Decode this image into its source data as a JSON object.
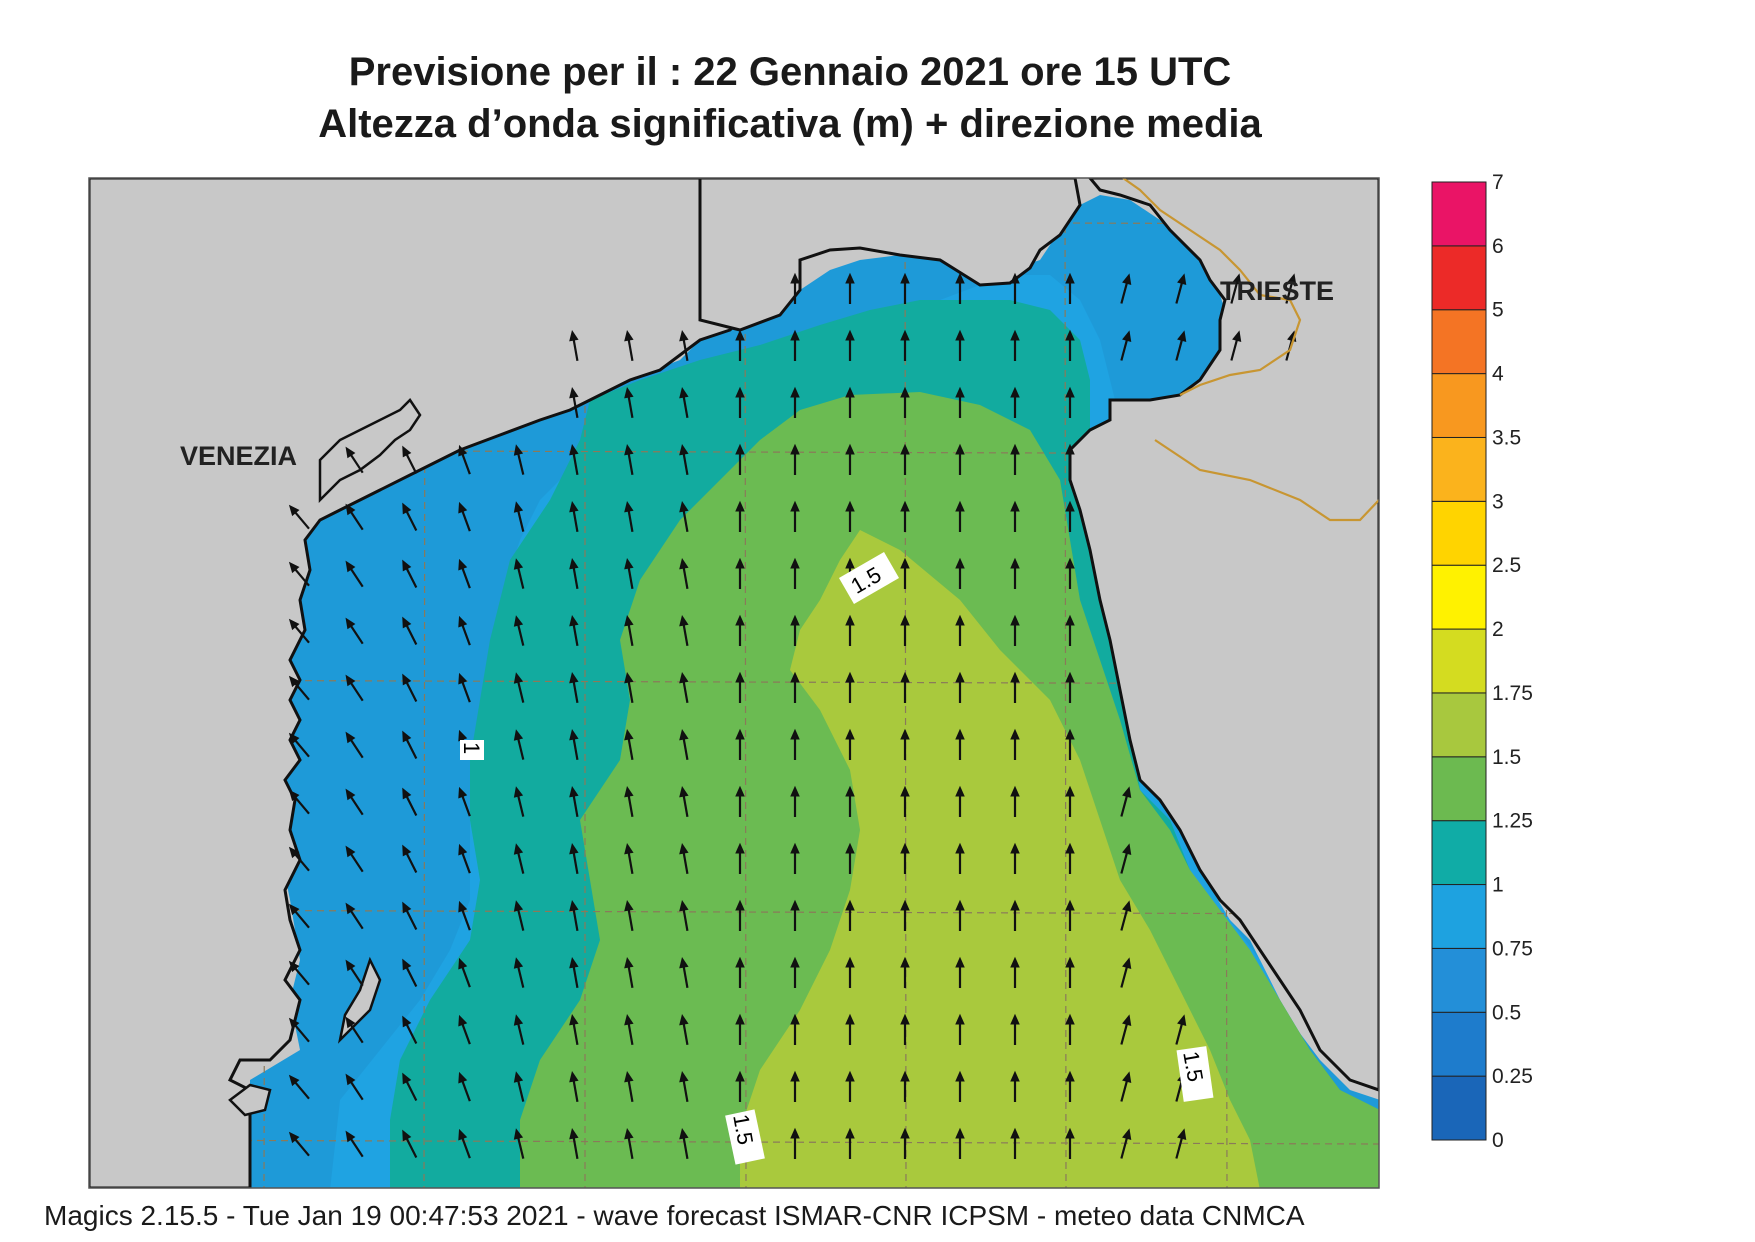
{
  "header": {
    "title": "Previsione per il  :  22  Gennaio  2021    ore 15 UTC",
    "subtitle": "Altezza d’onda significativa (m) + direzione media"
  },
  "map": {
    "cities": [
      {
        "name": "VENEZIA"
      },
      {
        "name": "TRIESTE"
      }
    ],
    "contour_labels": [
      "1.5",
      "1",
      "1.5",
      "1.5"
    ],
    "colors": {
      "land": "#c8c8c8",
      "coast": "#111111",
      "border": "#c89632",
      "grid": "#8a7a5a"
    }
  },
  "colorbar": {
    "levels": [
      "0",
      "0.25",
      "0.5",
      "0.75",
      "1",
      "1.25",
      "1.5",
      "1.75",
      "2",
      "2.5",
      "3",
      "3.5",
      "4",
      "5",
      "6",
      "7"
    ],
    "colors": [
      "#1a66b8",
      "#1e7ccc",
      "#238fd8",
      "#1ea2e0",
      "#10aca6",
      "#6cba50",
      "#a8c83e",
      "#d4dc20",
      "#fff200",
      "#ffd400",
      "#fbb31c",
      "#f8981f",
      "#f47424",
      "#ec2a28",
      "#ea1466"
    ]
  },
  "footer": {
    "text": "Magics 2.15.5 - Tue Jan 19 00:47:53 2021 - wave forecast  ISMAR-CNR  ICPSM - meteo data   CNMCA"
  }
}
